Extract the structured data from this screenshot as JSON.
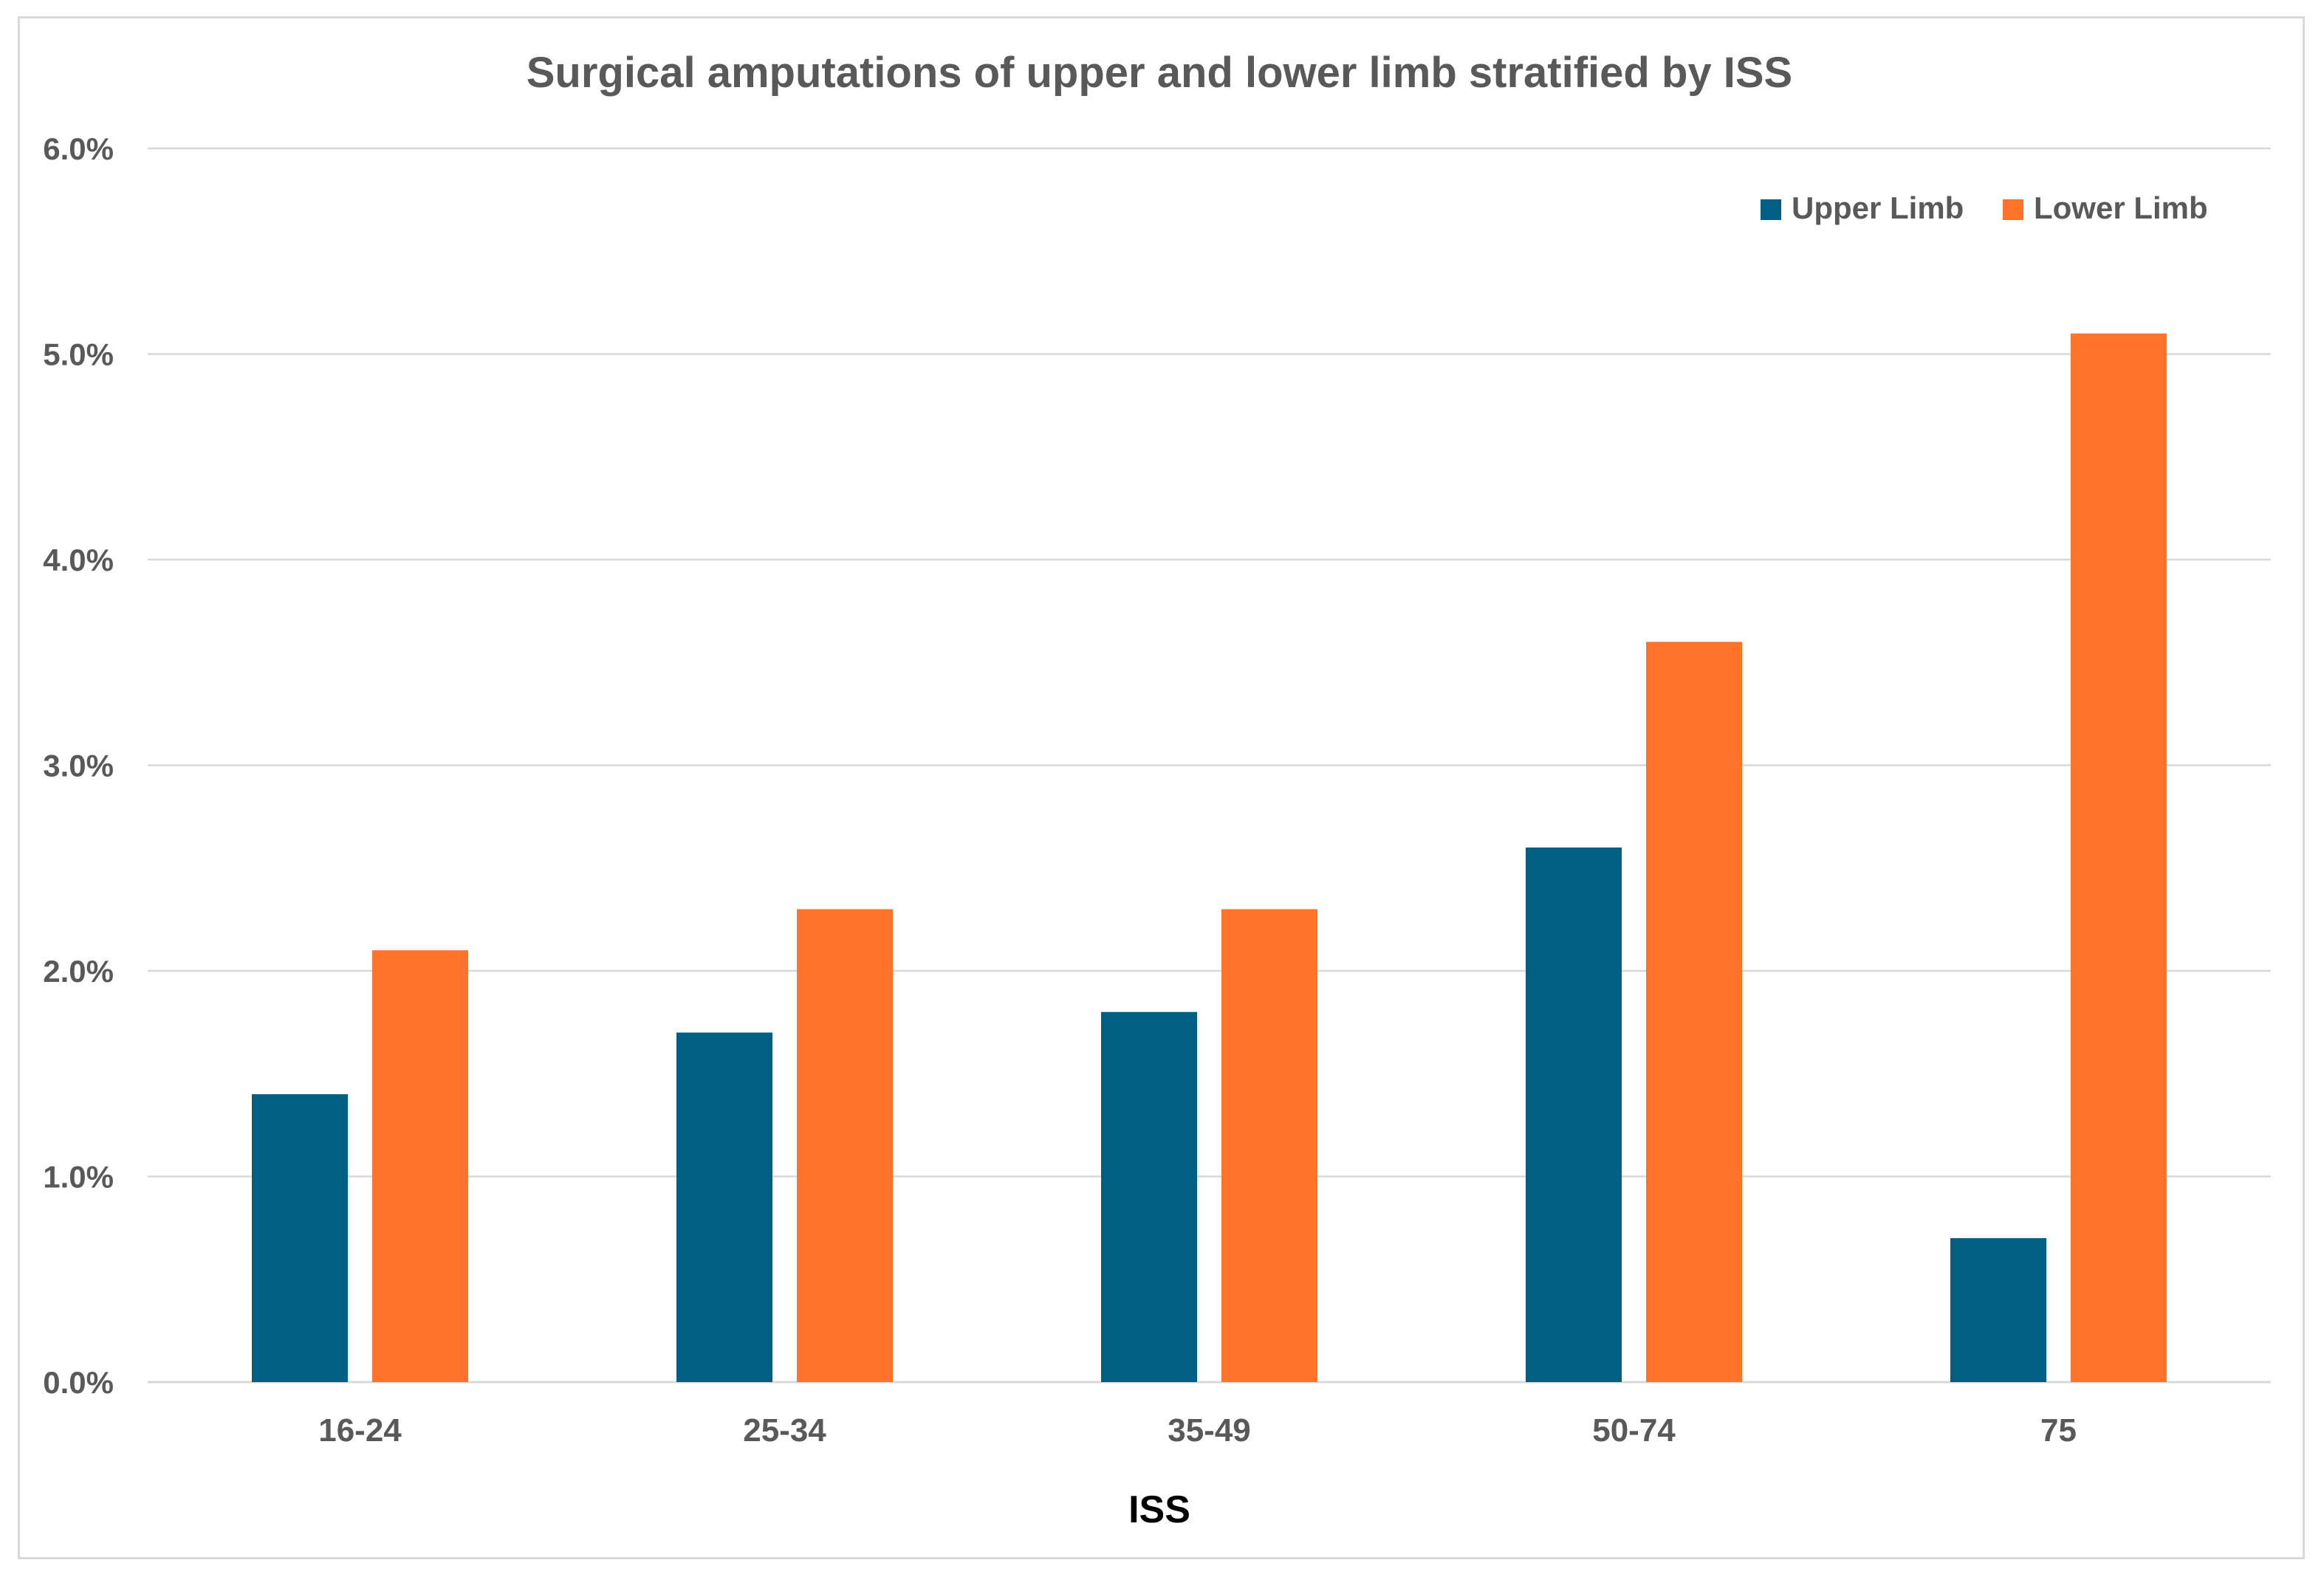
{
  "chart_data": {
    "type": "bar",
    "title": "Surgical amputations of upper and lower limb stratified by ISS",
    "xlabel": "ISS",
    "ylabel": "",
    "categories": [
      "16-24",
      "25-34",
      "35-49",
      "50-74",
      "75"
    ],
    "series": [
      {
        "name": "Upper Limb",
        "color": "#005f83",
        "values": [
          1.4,
          1.7,
          1.8,
          2.6,
          0.7
        ]
      },
      {
        "name": "Lower Limb",
        "color": "#ff7229",
        "values": [
          2.1,
          2.3,
          2.3,
          3.6,
          5.1
        ]
      }
    ],
    "ylim": [
      0,
      6
    ],
    "yticks": [
      0,
      1,
      2,
      3,
      4,
      5,
      6
    ],
    "ytick_labels": [
      "0.0%",
      "1.0%",
      "2.0%",
      "3.0%",
      "4.0%",
      "5.0%",
      "6.0%"
    ],
    "value_unit": "%",
    "grid": true,
    "legend_position": "top-right",
    "colors": {
      "gridline": "#d9d9d9",
      "text": "#595959",
      "border": "#d9d9d9"
    }
  }
}
